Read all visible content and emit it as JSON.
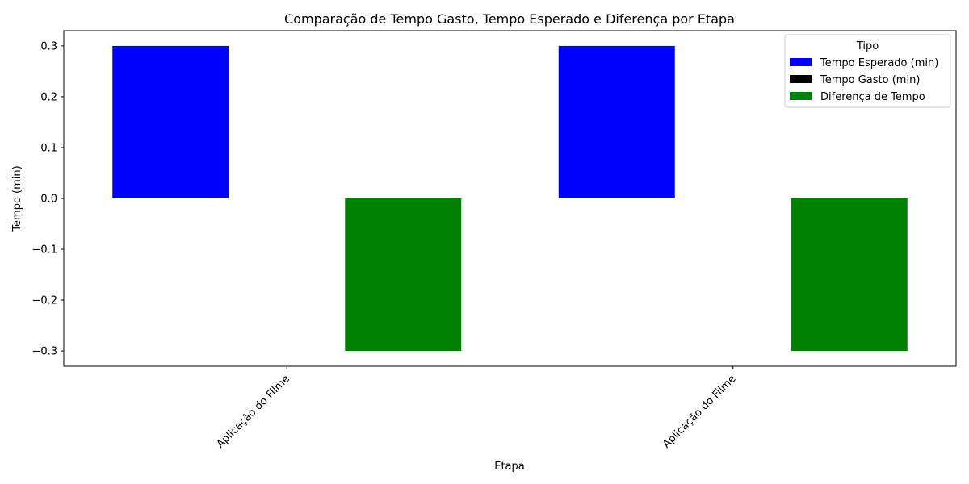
{
  "chart_data": {
    "type": "bar",
    "title": "Comparação de Tempo Gasto, Tempo Esperado e Diferença por Etapa",
    "xlabel": "Etapa",
    "ylabel": "Tempo (min)",
    "categories": [
      "Aplicação do Filme",
      "Aplicação do Filme"
    ],
    "series": [
      {
        "name": "Tempo Esperado (min)",
        "values": [
          0.3,
          0.3
        ],
        "color": "#0000ff"
      },
      {
        "name": "Tempo Gasto (min)",
        "values": [
          0,
          0
        ],
        "color": "#000000"
      },
      {
        "name": "Diferença de Tempo",
        "values": [
          -0.3,
          -0.3
        ],
        "color": "#008000"
      }
    ],
    "ylim": [
      -0.33,
      0.33
    ],
    "yticks": [
      0.3,
      0.2,
      0.1,
      0.0,
      -0.1,
      -0.2,
      -0.3
    ],
    "ytick_labels": [
      "0.3",
      "0.2",
      "0.1",
      "0.0",
      "−0.1",
      "−0.2",
      "−0.3"
    ],
    "legend": {
      "title": "Tipo",
      "position": "top-right"
    },
    "grid": false
  }
}
